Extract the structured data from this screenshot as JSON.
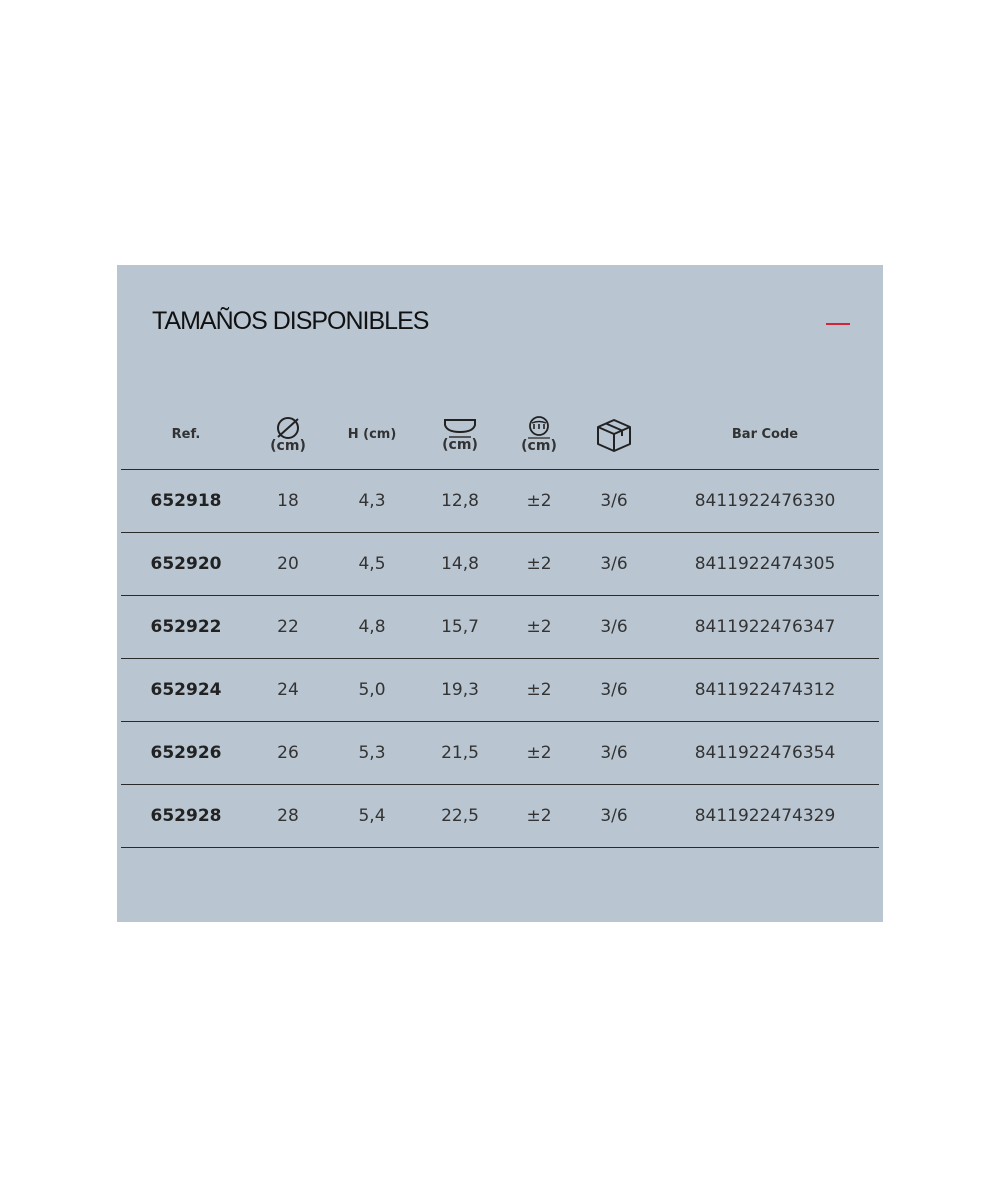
{
  "section": {
    "title": "TAMAÑOS DISPONIBLES",
    "toggle_icon": "minus-icon",
    "accent_color": "#d0253a"
  },
  "table": {
    "headers": {
      "ref": "Ref.",
      "diameter_unit": "(cm)",
      "height": "H (cm)",
      "base_unit": "(cm)",
      "induction_unit": "(cm)",
      "barcode": "Bar Code"
    },
    "header_icons": [
      "diameter-icon",
      "base-diameter-icon",
      "induction-icon",
      "box-icon"
    ],
    "rows": [
      {
        "ref": "652918",
        "diameter": "18",
        "height": "4,3",
        "base": "12,8",
        "induction": "±2",
        "box": "3/6",
        "barcode": "8411922476330"
      },
      {
        "ref": "652920",
        "diameter": "20",
        "height": "4,5",
        "base": "14,8",
        "induction": "±2",
        "box": "3/6",
        "barcode": "8411922474305"
      },
      {
        "ref": "652922",
        "diameter": "22",
        "height": "4,8",
        "base": "15,7",
        "induction": "±2",
        "box": "3/6",
        "barcode": "8411922476347"
      },
      {
        "ref": "652924",
        "diameter": "24",
        "height": "5,0",
        "base": "19,3",
        "induction": "±2",
        "box": "3/6",
        "barcode": "8411922474312"
      },
      {
        "ref": "652926",
        "diameter": "26",
        "height": "5,3",
        "base": "21,5",
        "induction": "±2",
        "box": "3/6",
        "barcode": "8411922476354"
      },
      {
        "ref": "652928",
        "diameter": "28",
        "height": "5,4",
        "base": "22,5",
        "induction": "±2",
        "box": "3/6",
        "barcode": "8411922474329"
      }
    ]
  }
}
